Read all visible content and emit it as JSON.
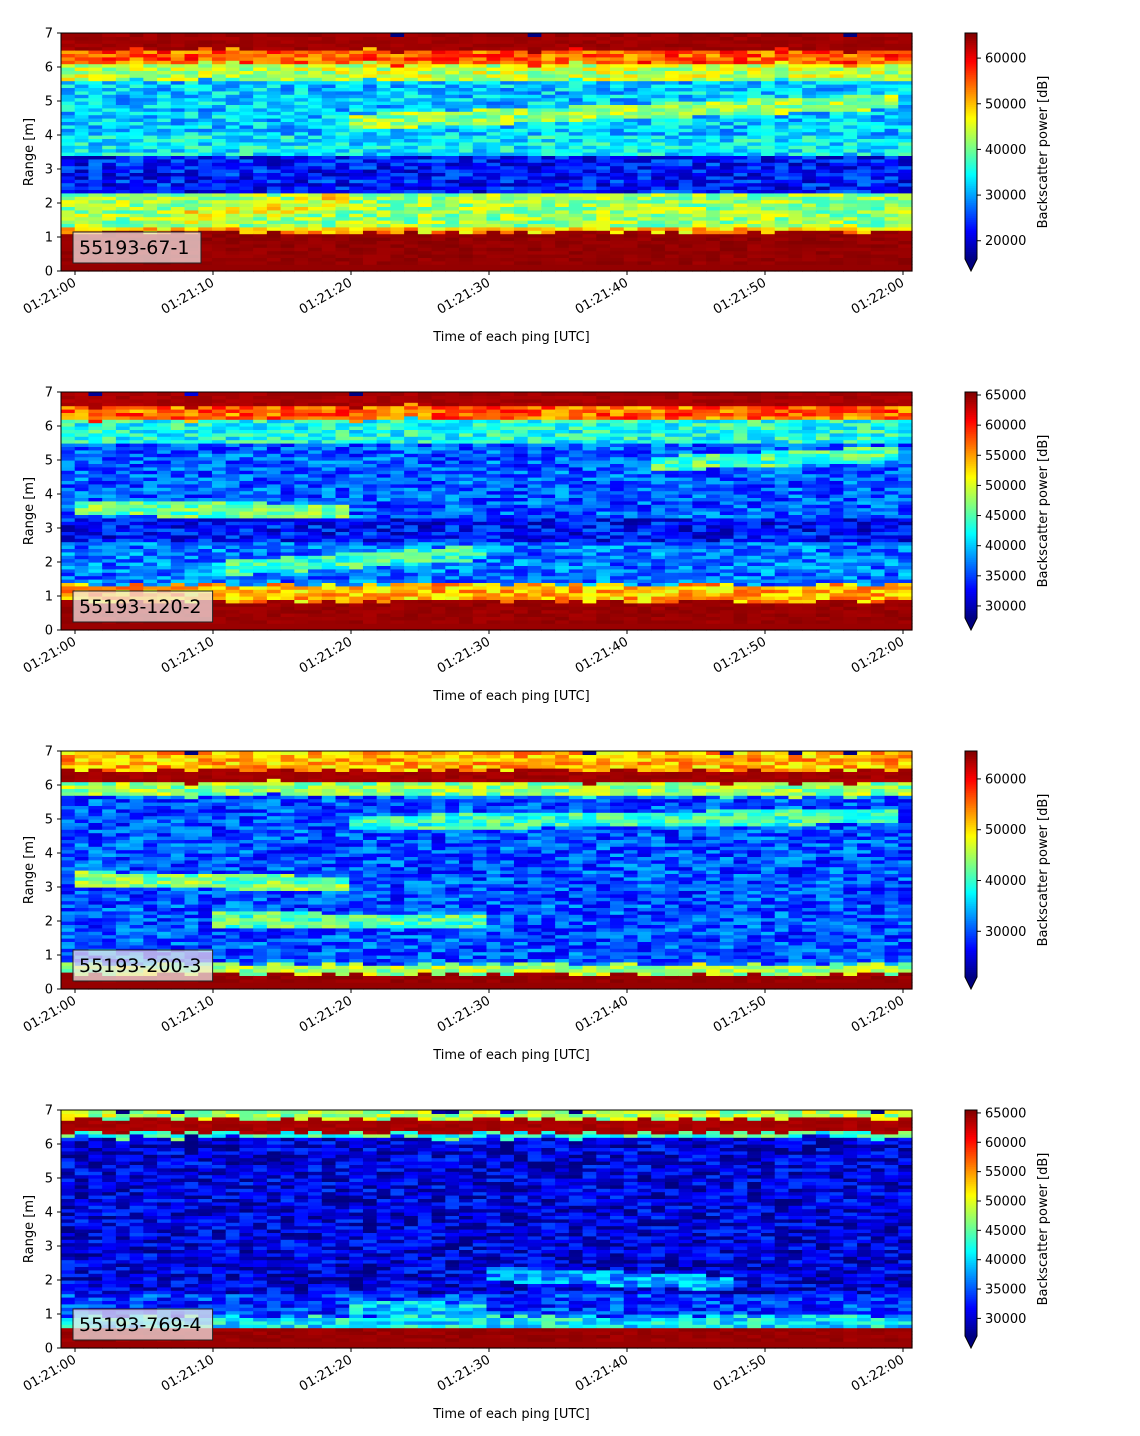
{
  "figure": {
    "x_ticks": [
      "01:21:00",
      "01:21:10",
      "01:21:20",
      "01:21:30",
      "01:21:40",
      "01:21:50",
      "01:22:00"
    ],
    "y_ticks": [
      "0",
      "1",
      "2",
      "3",
      "4",
      "5",
      "6",
      "7"
    ]
  },
  "chart_data": [
    {
      "type": "heatmap",
      "tag": "55193-67-1",
      "xlabel": "Time of each ping [UTC]",
      "ylabel": "Range [m]",
      "colorbar_label": "Backscatter power [dB]",
      "x_range": [
        "01:21:00",
        "01:22:00"
      ],
      "ylim": [
        0,
        7
      ],
      "clim": [
        16000,
        65500
      ],
      "colorbar_ticks": [
        20000,
        30000,
        40000,
        50000,
        60000
      ],
      "colorbar_tick_labels": [
        "20000",
        "30000",
        "40000",
        "50000",
        "60000"
      ],
      "colormap": "jet",
      "colorbar_extend": "min",
      "bands": [
        {
          "range_m": [
            0.2,
            1.15
          ],
          "value": 64500
        },
        {
          "range_m": [
            1.15,
            1.3
          ],
          "value": 50000
        },
        {
          "range_m": [
            1.3,
            2.3
          ],
          "value": 42000
        },
        {
          "range_m": [
            2.3,
            3.4
          ],
          "value": 23000
        },
        {
          "range_m": [
            3.4,
            4.0
          ],
          "value": 34000
        },
        {
          "range_m": [
            4.0,
            5.6
          ],
          "value": 32000
        },
        {
          "range_m": [
            5.6,
            6.1
          ],
          "value": 44000
        },
        {
          "range_m": [
            6.1,
            6.5
          ],
          "value": 55000
        },
        {
          "range_m": [
            6.5,
            7.0
          ],
          "value": 64000
        }
      ],
      "tracks": [
        {
          "start": [
            "01:21:08",
            1.6
          ],
          "end": [
            "01:21:20",
            2.1
          ],
          "value": 47000
        },
        {
          "start": [
            "01:21:20",
            4.4
          ],
          "end": [
            "01:22:00",
            5.0
          ],
          "value": 42000
        }
      ]
    },
    {
      "type": "heatmap",
      "tag": "55193-120-2",
      "xlabel": "Time of each ping [UTC]",
      "ylabel": "Range [m]",
      "colorbar_label": "Backscatter power [dB]",
      "x_range": [
        "01:21:00",
        "01:22:00"
      ],
      "ylim": [
        0,
        7
      ],
      "clim": [
        28000,
        65500
      ],
      "colorbar_ticks": [
        30000,
        35000,
        40000,
        45000,
        50000,
        55000,
        60000,
        65000
      ],
      "colorbar_tick_labels": [
        "30000",
        "35000",
        "40000",
        "45000",
        "50000",
        "55000",
        "60000",
        "65000"
      ],
      "colormap": "jet",
      "colorbar_extend": "min",
      "bands": [
        {
          "range_m": [
            0.2,
            0.85
          ],
          "value": 64500
        },
        {
          "range_m": [
            0.85,
            1.35
          ],
          "value": 54000
        },
        {
          "range_m": [
            1.35,
            2.6
          ],
          "value": 37000
        },
        {
          "range_m": [
            2.6,
            3.3
          ],
          "value": 33000
        },
        {
          "range_m": [
            3.3,
            5.5
          ],
          "value": 36000
        },
        {
          "range_m": [
            5.5,
            6.2
          ],
          "value": 43000
        },
        {
          "range_m": [
            6.2,
            6.6
          ],
          "value": 57000
        },
        {
          "range_m": [
            6.6,
            7.0
          ],
          "value": 64000
        }
      ],
      "tracks": [
        {
          "start": [
            "01:21:00",
            3.6
          ],
          "end": [
            "01:21:20",
            3.5
          ],
          "value": 46000
        },
        {
          "start": [
            "01:21:10",
            1.8
          ],
          "end": [
            "01:21:30",
            2.3
          ],
          "value": 44000
        },
        {
          "start": [
            "01:21:42",
            4.9
          ],
          "end": [
            "01:22:00",
            5.2
          ],
          "value": 45000
        }
      ]
    },
    {
      "type": "heatmap",
      "tag": "55193-200-3",
      "xlabel": "Time of each ping [UTC]",
      "ylabel": "Range [m]",
      "colorbar_label": "Backscatter power [dB]",
      "x_range": [
        "01:21:00",
        "01:22:00"
      ],
      "ylim": [
        0,
        7
      ],
      "clim": [
        21000,
        65500
      ],
      "colorbar_ticks": [
        30000,
        40000,
        50000,
        60000
      ],
      "colorbar_tick_labels": [
        "30000",
        "40000",
        "50000",
        "60000"
      ],
      "colormap": "jet",
      "colorbar_extend": "min",
      "bands": [
        {
          "range_m": [
            0.2,
            0.45
          ],
          "value": 64500
        },
        {
          "range_m": [
            0.45,
            0.75
          ],
          "value": 45000
        },
        {
          "range_m": [
            0.75,
            5.7
          ],
          "value": 30000
        },
        {
          "range_m": [
            5.7,
            6.1
          ],
          "value": 44000
        },
        {
          "range_m": [
            6.1,
            6.45
          ],
          "value": 64000
        },
        {
          "range_m": [
            6.45,
            7.0
          ],
          "value": 52000
        }
      ],
      "tracks": [
        {
          "start": [
            "01:21:00",
            3.25
          ],
          "end": [
            "01:21:20",
            3.1
          ],
          "value": 43000
        },
        {
          "start": [
            "01:21:10",
            2.05
          ],
          "end": [
            "01:21:30",
            2.0
          ],
          "value": 41000
        },
        {
          "start": [
            "01:21:20",
            4.9
          ],
          "end": [
            "01:22:00",
            5.1
          ],
          "value": 40000
        }
      ]
    },
    {
      "type": "heatmap",
      "tag": "55193-769-4",
      "xlabel": "Time of each ping [UTC]",
      "ylabel": "Range [m]",
      "colorbar_label": "Backscatter power [dB]",
      "x_range": [
        "01:21:00",
        "01:22:00"
      ],
      "ylim": [
        0,
        7
      ],
      "clim": [
        27000,
        65500
      ],
      "colorbar_ticks": [
        30000,
        35000,
        40000,
        45000,
        50000,
        55000,
        60000,
        65000
      ],
      "colorbar_tick_labels": [
        "30000",
        "35000",
        "40000",
        "45000",
        "50000",
        "55000",
        "60000",
        "65000"
      ],
      "colormap": "jet",
      "colorbar_extend": "min",
      "bands": [
        {
          "range_m": [
            0.2,
            0.6
          ],
          "value": 64500
        },
        {
          "range_m": [
            0.6,
            0.95
          ],
          "value": 41000
        },
        {
          "range_m": [
            0.95,
            1.6
          ],
          "value": 34000
        },
        {
          "range_m": [
            1.6,
            6.2
          ],
          "value": 30500
        },
        {
          "range_m": [
            6.2,
            6.35
          ],
          "value": 44000
        },
        {
          "range_m": [
            6.35,
            6.75
          ],
          "value": 64000
        },
        {
          "range_m": [
            6.75,
            7.0
          ],
          "value": 48000
        }
      ],
      "tracks": [
        {
          "start": [
            "01:21:30",
            2.2
          ],
          "end": [
            "01:21:48",
            1.9
          ],
          "value": 38000
        },
        {
          "start": [
            "01:21:20",
            1.2
          ],
          "end": [
            "01:21:30",
            1.1
          ],
          "value": 40000
        }
      ]
    }
  ]
}
